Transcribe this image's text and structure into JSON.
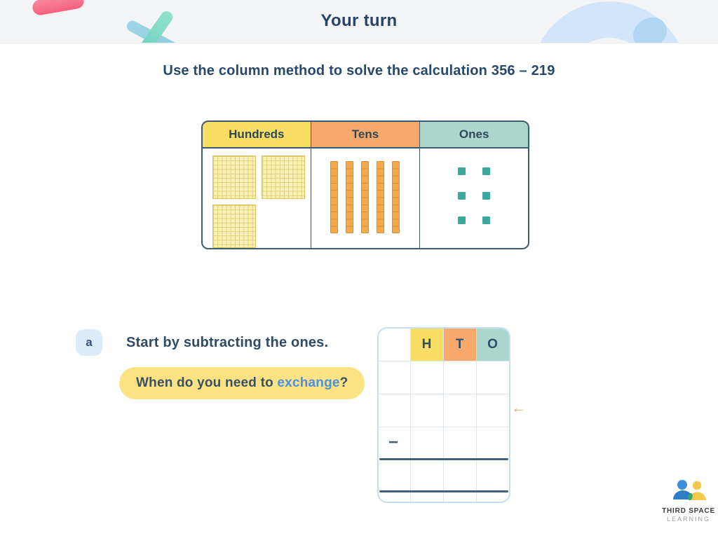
{
  "header": {
    "title": "Your turn"
  },
  "instruction": "Use the column method to solve the calculation 356 – 219",
  "place_value_table": {
    "headers": [
      {
        "label": "Hundreds",
        "bg": "#FADE63"
      },
      {
        "label": "Tens",
        "bg": "#F8A96B"
      },
      {
        "label": "Ones",
        "bg": "#ABD6CC"
      }
    ],
    "blocks": {
      "hundreds": 3,
      "tens": 5,
      "ones": 6
    }
  },
  "question": {
    "badge": "a",
    "prompt": "Start by subtracting the ones.",
    "hint": {
      "prefix": "When do you need to ",
      "highlight": "exchange",
      "suffix": "?"
    }
  },
  "column_grid": {
    "headers": [
      {
        "label": "H",
        "bg": "#FADE63"
      },
      {
        "label": "T",
        "bg": "#F8A96B"
      },
      {
        "label": "O",
        "bg": "#ABD6CC"
      }
    ],
    "operator": "−",
    "arrow_icon": "←"
  },
  "logo": {
    "line1": "THIRD SPACE",
    "line2": "LEARNING"
  },
  "colors": {
    "accent_yellow": "#FADE63",
    "accent_orange": "#F8A96B",
    "accent_teal": "#ABD6CC",
    "navy_text": "#27486B",
    "pill_yellow": "#FBE383",
    "link_blue": "#4C90E2",
    "arrow_orange": "#F0A35C",
    "cube_teal": "#3BAA9D",
    "rod_orange": "#F5A94B",
    "square_yellow": "#F9F1B8",
    "table_border": "#3E5D6B",
    "grid_border_blue": "#C8DFF1",
    "grid_dark_line": "#3E617D"
  }
}
